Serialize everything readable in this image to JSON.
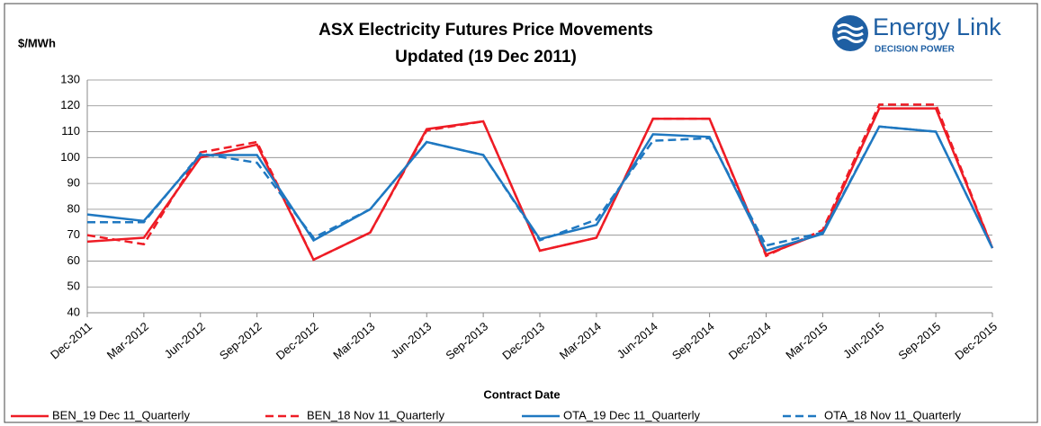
{
  "chart_data": {
    "type": "line",
    "title": "ASX Electricity Futures Price Movements",
    "subtitle": "Updated (19 Dec 2011)",
    "y_label": "$/MWh",
    "x_label": "Contract Date",
    "logo": {
      "name": "Energy Link",
      "tagline": "DECISION POWER"
    },
    "categories": [
      "Dec-2011",
      "Mar-2012",
      "Jun-2012",
      "Sep-2012",
      "Dec-2012",
      "Mar-2013",
      "Jun-2013",
      "Sep-2013",
      "Dec-2013",
      "Mar-2014",
      "Jun-2014",
      "Sep-2014",
      "Dec-2014",
      "Mar-2015",
      "Jun-2015",
      "Sep-2015",
      "Dec-2015"
    ],
    "series": [
      {
        "name": "BEN_19 Dec 11_Quarterly",
        "color": "#ee1c25",
        "dash": false,
        "values": [
          67.5,
          69,
          100,
          105,
          60.5,
          71,
          111,
          114,
          64,
          69,
          115,
          115,
          62.5,
          71,
          119,
          119,
          65
        ]
      },
      {
        "name": "BEN_18 Nov 11_Quarterly",
        "color": "#ee1c25",
        "dash": true,
        "values": [
          70,
          66.5,
          102,
          106,
          60.5,
          71,
          110.5,
          114,
          64,
          69,
          115,
          115,
          62,
          72,
          120.5,
          120.5,
          65
        ]
      },
      {
        "name": "OTA_19 Dec 11_Quarterly",
        "color": "#1f78c1",
        "dash": false,
        "values": [
          78,
          75.5,
          101,
          101,
          68,
          80,
          106,
          101,
          68.5,
          74,
          109,
          108,
          64,
          70.5,
          112,
          110,
          65
        ]
      },
      {
        "name": "OTA_18 Nov 11_Quarterly",
        "color": "#1f78c1",
        "dash": true,
        "values": [
          75,
          75,
          101.5,
          98,
          69,
          80,
          106,
          101,
          68,
          76,
          106.5,
          107.5,
          66,
          71,
          112,
          110,
          65
        ]
      }
    ],
    "ylim": [
      40,
      130
    ],
    "yticks": [
      40,
      50,
      60,
      70,
      80,
      90,
      100,
      110,
      120,
      130
    ],
    "grid": true,
    "legend": "bottom"
  }
}
